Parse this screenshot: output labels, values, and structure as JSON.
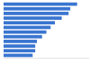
{
  "chart_data": {
    "type": "bar",
    "orientation": "horizontal",
    "categories": [
      null,
      null,
      null,
      null,
      null,
      null,
      null,
      null,
      null,
      null,
      null,
      null
    ],
    "values": [
      86,
      78,
      76,
      68,
      60,
      55,
      50,
      45,
      39,
      37,
      37,
      34
    ],
    "color": "#3a75d0",
    "xlim": [
      0,
      100
    ],
    "xticks": [],
    "grid": false,
    "tick_labels": false
  }
}
